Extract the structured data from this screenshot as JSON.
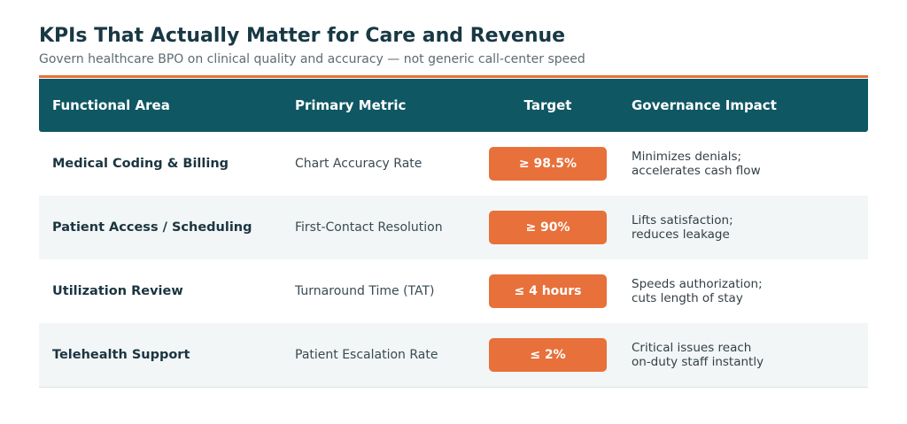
{
  "header": {
    "title": "KPIs That Actually Matter for Care and Revenue",
    "subtitle": "Govern healthcare BPO on clinical quality and accuracy — not generic call-center speed"
  },
  "table": {
    "columns": [
      "Functional Area",
      "Primary Metric",
      "Target",
      "Governance Impact"
    ],
    "rows": [
      {
        "area": "Medical Coding & Billing",
        "metric": "Chart Accuracy Rate",
        "target": "≥ 98.5%",
        "impact": [
          "Minimizes denials;",
          "accelerates cash flow"
        ]
      },
      {
        "area": "Patient Access / Scheduling",
        "metric": "First-Contact Resolution",
        "target": "≥ 90%",
        "impact": [
          "Lifts satisfaction;",
          "reduces leakage"
        ]
      },
      {
        "area": "Utilization Review",
        "metric": "Turnaround Time (TAT)",
        "target": "≤ 4 hours",
        "impact": [
          "Speeds authorization;",
          "cuts length of stay"
        ]
      },
      {
        "area": "Telehealth Support",
        "metric": "Patient Escalation Rate",
        "target": "≤ 2%",
        "impact": [
          "Critical issues reach",
          "on-duty staff instantly"
        ]
      }
    ]
  }
}
